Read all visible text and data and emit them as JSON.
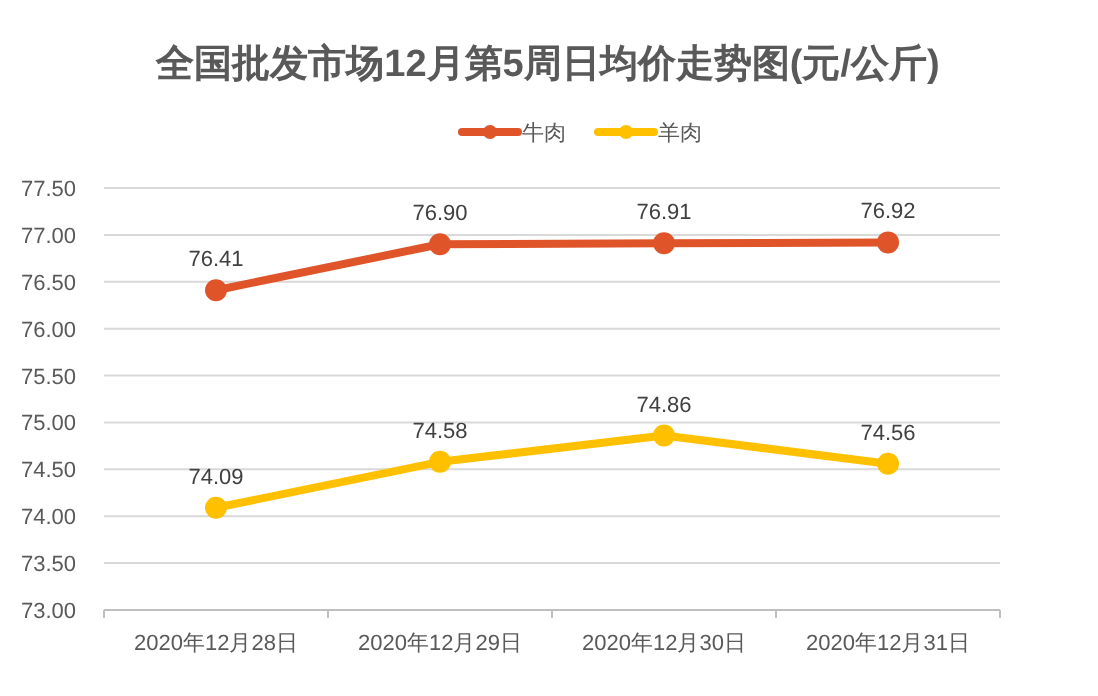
{
  "chart_data": {
    "type": "line",
    "title": "全国批发市场12月第5周日均价走势图(元/公斤)",
    "categories": [
      "2020年12月28日",
      "2020年12月29日",
      "2020年12月30日",
      "2020年12月31日"
    ],
    "series": [
      {
        "name": "牛肉",
        "color": "#e0542a",
        "values": [
          76.41,
          76.9,
          76.91,
          76.92
        ],
        "value_labels": [
          "76.41",
          "76.90",
          "76.91",
          "76.92"
        ]
      },
      {
        "name": "羊肉",
        "color": "#ffc000",
        "values": [
          74.09,
          74.58,
          74.86,
          74.56
        ],
        "value_labels": [
          "74.09",
          "74.58",
          "74.86",
          "74.56"
        ]
      }
    ],
    "ylim": [
      73,
      77.5
    ],
    "yticks": [
      {
        "value": 73,
        "label": "73.00"
      },
      {
        "value": 73.5,
        "label": "73.50"
      },
      {
        "value": 74,
        "label": "74.00"
      },
      {
        "value": 74.5,
        "label": "74.50"
      },
      {
        "value": 75,
        "label": "75.00"
      },
      {
        "value": 75.5,
        "label": "75.50"
      },
      {
        "value": 76,
        "label": "76.00"
      },
      {
        "value": 76.5,
        "label": "76.50"
      },
      {
        "value": 77,
        "label": "77.00"
      },
      {
        "value": 77.5,
        "label": "77.50"
      }
    ],
    "grid": "y",
    "legend": "top",
    "marker": "circle",
    "line_style": "solid"
  }
}
